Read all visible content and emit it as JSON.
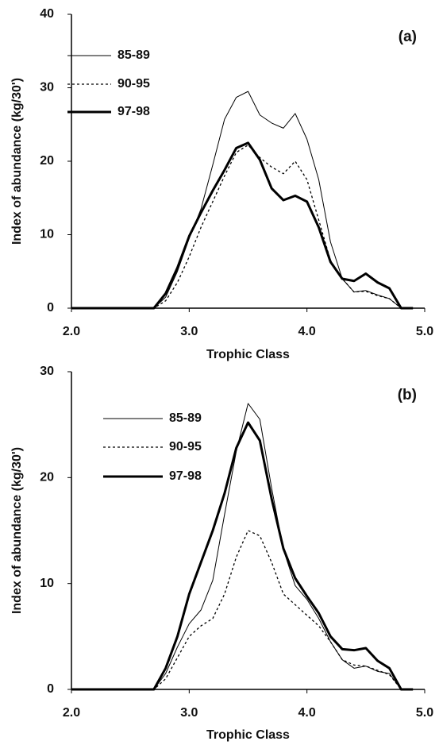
{
  "chart_data": [
    {
      "type": "line",
      "annotation": "(a)",
      "xlabel": "Trophic Class",
      "ylabel": "Index of abundance (kg/30')",
      "x": [
        2.0,
        2.1,
        2.2,
        2.3,
        2.4,
        2.5,
        2.6,
        2.7,
        2.8,
        2.9,
        3.0,
        3.1,
        3.2,
        3.3,
        3.4,
        3.5,
        3.6,
        3.7,
        3.8,
        3.9,
        4.0,
        4.1,
        4.2,
        4.3,
        4.4,
        4.5,
        4.6,
        4.7,
        4.8,
        4.9
      ],
      "series": [
        {
          "name": "85-89",
          "color": "#000000",
          "line_width": 1,
          "dash": "solid",
          "values": [
            0,
            0,
            0,
            0,
            0,
            0,
            0,
            0,
            1.5,
            5,
            9.5,
            13.5,
            19.5,
            25.7,
            28.7,
            29.5,
            26.3,
            25.2,
            24.5,
            26.5,
            23,
            17.5,
            9,
            4,
            2.2,
            2.4,
            1.8,
            1.3,
            0,
            0
          ]
        },
        {
          "name": "90-95",
          "color": "#000000",
          "line_width": 1.3,
          "dash": "dotted",
          "values": [
            0,
            0,
            0,
            0,
            0,
            0,
            0,
            0,
            1,
            3.5,
            7,
            11,
            14.5,
            18,
            21.2,
            22.2,
            20.5,
            19.2,
            18.3,
            20,
            17.5,
            12,
            6.5,
            4,
            2.2,
            2.3,
            1.7,
            1.3,
            0,
            0
          ]
        },
        {
          "name": "97-98",
          "color": "#000000",
          "line_width": 3,
          "dash": "solid",
          "values": [
            0,
            0,
            0,
            0,
            0,
            0,
            0,
            0,
            2,
            5.5,
            9.8,
            13,
            16,
            18.8,
            21.8,
            22.5,
            20.2,
            16.3,
            14.7,
            15.3,
            14.5,
            11,
            6.3,
            4,
            3.7,
            4.7,
            3.5,
            2.7,
            0,
            0
          ]
        }
      ],
      "xlim": [
        2,
        5
      ],
      "xticks": [
        {
          "value": 2,
          "label": "2.0"
        },
        {
          "value": 3,
          "label": "3.0"
        },
        {
          "value": 4,
          "label": "4.0"
        },
        {
          "value": 5,
          "label": "5.0"
        }
      ],
      "ylim": [
        0,
        40
      ],
      "yticks": [
        0,
        10,
        20,
        30,
        40
      ],
      "grid": false,
      "legend": "upper left"
    },
    {
      "type": "line",
      "annotation": "(b)",
      "xlabel": "Trophic Class",
      "ylabel": "Index of abundance (kg/30')",
      "x": [
        2.0,
        2.1,
        2.2,
        2.3,
        2.4,
        2.5,
        2.6,
        2.7,
        2.8,
        2.9,
        3.0,
        3.1,
        3.2,
        3.3,
        3.4,
        3.5,
        3.6,
        3.7,
        3.8,
        3.9,
        4.0,
        4.1,
        4.2,
        4.3,
        4.4,
        4.5,
        4.6,
        4.7,
        4.8,
        4.9
      ],
      "series": [
        {
          "name": "85-89",
          "color": "#000000",
          "line_width": 1,
          "dash": "solid",
          "values": [
            0,
            0,
            0,
            0,
            0,
            0,
            0,
            0,
            1.5,
            4,
            6.2,
            7.5,
            10.3,
            16.5,
            22.5,
            27,
            25.5,
            19,
            13.2,
            9.8,
            8.5,
            6.7,
            4.5,
            2.8,
            2,
            2.2,
            1.7,
            1.5,
            0,
            0
          ]
        },
        {
          "name": "90-95",
          "color": "#000000",
          "line_width": 1.3,
          "dash": "dotted",
          "values": [
            0,
            0,
            0,
            0,
            0,
            0,
            0,
            0,
            1,
            3,
            5,
            6,
            6.7,
            9,
            12.5,
            15,
            14.5,
            12,
            9,
            8,
            7,
            6,
            4.5,
            2.8,
            2.3,
            2.2,
            1.8,
            1.4,
            0,
            0
          ]
        },
        {
          "name": "97-98",
          "color": "#000000",
          "line_width": 3,
          "dash": "solid",
          "values": [
            0,
            0,
            0,
            0,
            0,
            0,
            0,
            0,
            2,
            5,
            9,
            12,
            15,
            18.5,
            22.8,
            25.2,
            23.5,
            18,
            13.3,
            10.5,
            8.8,
            7.2,
            5,
            3.8,
            3.7,
            3.9,
            2.7,
            2,
            0,
            0
          ]
        }
      ],
      "xlim": [
        2,
        5
      ],
      "xticks": [
        {
          "value": 2,
          "label": "2.0"
        },
        {
          "value": 3,
          "label": "3.0"
        },
        {
          "value": 4,
          "label": "4.0"
        },
        {
          "value": 5,
          "label": "5.0"
        }
      ],
      "ylim": [
        0,
        30
      ],
      "yticks": [
        0,
        10,
        20,
        30
      ],
      "grid": false,
      "legend": "upper left"
    }
  ]
}
